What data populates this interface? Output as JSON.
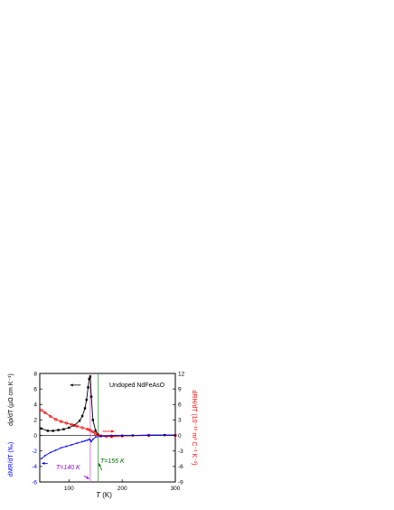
{
  "chart_data": {
    "type": "line",
    "annotation_title": "Undoped NdFeAsO",
    "x_axis": {
      "label_italic": "T",
      "label_unit": " (K)",
      "range": [
        45,
        300
      ],
      "ticks": [
        100,
        200,
        300
      ]
    },
    "left_axis": {
      "label_upper": "dρ/dT (μΩ cm K⁻¹)",
      "label_lower": "dMR/dT (‰)",
      "range": [
        -6,
        8
      ],
      "ticks": [
        -6,
        -4,
        -2,
        0,
        2,
        4,
        6,
        8
      ],
      "upper_color": "#000000",
      "lower_color": "#0000ff"
    },
    "right_axis": {
      "label": "dRH/dT (10⁻¹⁰ m³ C⁻¹ K⁻¹)",
      "range": [
        -9,
        12
      ],
      "ticks": [
        -9,
        -6,
        -3,
        0,
        3,
        6,
        9,
        12
      ],
      "color": "#ff0000"
    },
    "vlines": [
      {
        "x": 140,
        "color": "#cc66cc",
        "label": "T=140 K",
        "label_color": "#9900cc"
      },
      {
        "x": 155,
        "color": "#339933",
        "label": "T=155 K",
        "label_color": "#006600"
      }
    ],
    "series": [
      {
        "axis": "left",
        "color": "#000000",
        "marker": "square",
        "x": [
          48,
          60,
          70,
          80,
          90,
          100,
          110,
          120,
          125,
          130,
          133,
          136,
          138,
          140,
          142,
          145,
          150,
          155,
          160,
          180,
          200,
          220,
          250,
          280,
          300
        ],
        "y": [
          0.9,
          0.6,
          0.6,
          0.7,
          0.8,
          1.0,
          1.3,
          1.9,
          2.5,
          3.5,
          4.6,
          6.2,
          7.3,
          7.6,
          5.0,
          2.0,
          0.6,
          0.1,
          -0.05,
          -0.1,
          -0.05,
          0.0,
          0.05,
          0.05,
          0.05
        ]
      },
      {
        "axis": "right",
        "color": "#ff0000",
        "marker": "open-circle",
        "x": [
          48,
          55,
          65,
          75,
          85,
          95,
          105,
          115,
          125,
          135,
          140,
          145,
          150,
          155,
          160,
          170,
          180,
          200,
          250,
          300
        ],
        "y": [
          4.9,
          4.4,
          3.7,
          3.1,
          2.7,
          2.4,
          2.1,
          1.8,
          1.5,
          1.2,
          1.0,
          0.7,
          0.3,
          0.0,
          -0.1,
          -0.2,
          -0.2,
          -0.1,
          0.0,
          0.0
        ]
      },
      {
        "axis": "left",
        "color": "#0000ff",
        "marker": "dot",
        "x": [
          48,
          55,
          65,
          75,
          85,
          95,
          105,
          115,
          125,
          130,
          135,
          138,
          140,
          142,
          145,
          150,
          160,
          180,
          200,
          250,
          300
        ],
        "y": [
          -3.0,
          -2.6,
          -2.2,
          -1.9,
          -1.6,
          -1.4,
          -1.2,
          -1.0,
          -0.8,
          -0.7,
          -0.6,
          -0.5,
          -0.6,
          -0.8,
          -0.5,
          -0.2,
          -0.1,
          0.0,
          0.0,
          0.0,
          0.0
        ]
      }
    ]
  }
}
